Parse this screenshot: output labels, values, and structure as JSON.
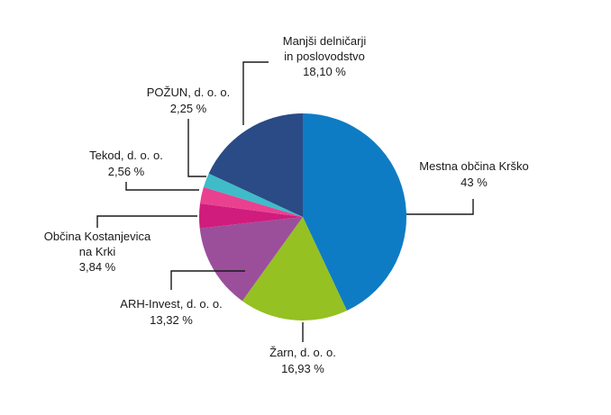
{
  "chart_data": {
    "type": "pie",
    "start_angle_deg": 0,
    "direction": "clockwise",
    "slices": [
      {
        "label": "Mestna občina Krško",
        "value": 43,
        "value_text": "43 %",
        "color": "#0e7cc4"
      },
      {
        "label": "Žarn, d. o. o.",
        "value": 16.93,
        "value_text": "16,93 %",
        "color": "#95c122"
      },
      {
        "label": "ARH-Invest, d. o. o.",
        "value": 13.32,
        "value_text": "13,32 %",
        "color": "#9b4f9b"
      },
      {
        "label": "Občina Kostanjevica na Krki",
        "value": 3.84,
        "value_text": "3,84 %",
        "color": "#d01c7d"
      },
      {
        "label": "Tekod, d. o. o.",
        "value": 2.56,
        "value_text": "2,56 %",
        "color": "#e94190"
      },
      {
        "label": "POŽUN, d. o. o.",
        "value": 2.25,
        "value_text": "2,25 %",
        "color": "#3fbcc8"
      },
      {
        "label": "Manjši delničarji in poslovodstvo",
        "value": 18.1,
        "value_text": "18,10 %",
        "color": "#2a4b86"
      }
    ]
  }
}
